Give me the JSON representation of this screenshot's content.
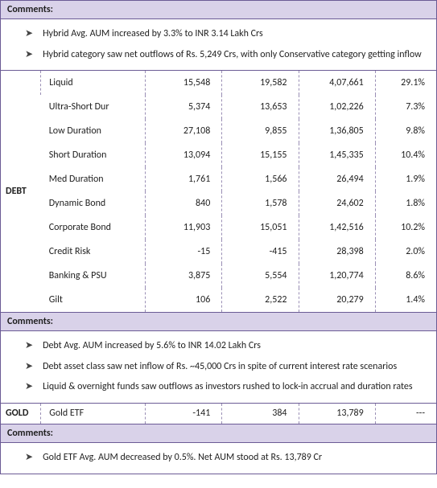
{
  "labels": {
    "comments": "Comments:",
    "debt": "DEBT",
    "gold": "GOLD"
  },
  "comments_hybrid": [
    "Hybrid Avg. AUM increased by 3.3% to INR 3.14 Lakh Crs",
    "Hybrid category saw net outflows of Rs. 5,249 Crs, with only Conservative category getting inflow"
  ],
  "debt_rows": [
    {
      "name": "Liquid",
      "c1": "15,548",
      "c2": "19,582",
      "c3": "4,07,661",
      "c4": "29.1%"
    },
    {
      "name": "Ultra-Short Dur",
      "c1": "5,374",
      "c2": "13,653",
      "c3": "1,02,226",
      "c4": "7.3%"
    },
    {
      "name": "Low Duration",
      "c1": "27,108",
      "c2": "9,855",
      "c3": "1,36,805",
      "c4": "9.8%"
    },
    {
      "name": "Short Duration",
      "c1": "13,094",
      "c2": "15,155",
      "c3": "1,45,335",
      "c4": "10.4%"
    },
    {
      "name": "Med Duration",
      "c1": "1,761",
      "c2": "1,566",
      "c3": "26,494",
      "c4": "1.9%"
    },
    {
      "name": "Dynamic Bond",
      "c1": "840",
      "c2": "1,578",
      "c3": "24,602",
      "c4": "1.8%"
    },
    {
      "name": "Corporate Bond",
      "c1": "11,903",
      "c2": "15,051",
      "c3": "1,42,516",
      "c4": "10.2%"
    },
    {
      "name": "Credit Risk",
      "c1": "-15",
      "c2": "-415",
      "c3": "28,398",
      "c4": "2.0%"
    },
    {
      "name": "Banking & PSU",
      "c1": "3,875",
      "c2": "5,554",
      "c3": "1,20,774",
      "c4": "8.6%"
    },
    {
      "name": "Gilt",
      "c1": "106",
      "c2": "2,522",
      "c3": "20,279",
      "c4": "1.4%"
    }
  ],
  "comments_debt": [
    "Debt Avg. AUM increased by 5.6% to INR 14.02 Lakh Crs",
    "Debt asset class saw net inflow of Rs. ~45,000 Crs in spite of current interest rate scenarios",
    "Liquid & overnight funds saw outflows as investors rushed to lock-in accrual and duration rates"
  ],
  "gold_row": {
    "name": "Gold ETF",
    "c1": "-141",
    "c2": "384",
    "c3": "13,789",
    "c4": "---"
  },
  "comments_gold": [
    "Gold ETF Avg. AUM decreased by 0.5%. Net AUM stood at Rs. 13,789 Cr"
  ]
}
